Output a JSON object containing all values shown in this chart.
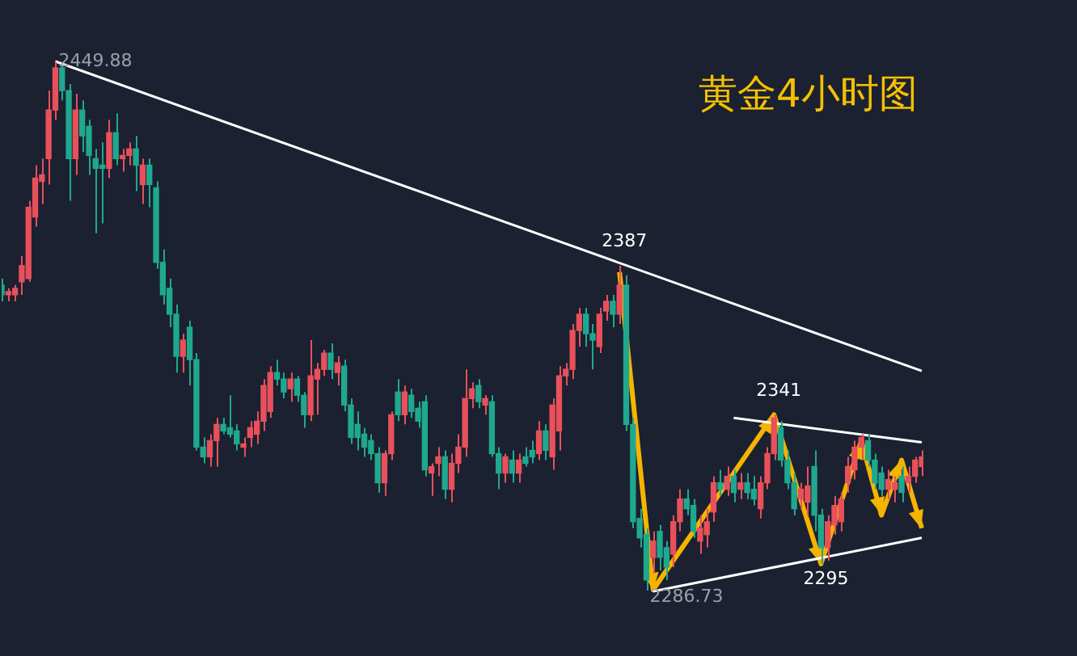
{
  "chart_data": {
    "type": "candlestick",
    "title": "黄金4小时图",
    "tick_labels": false,
    "colors": [
      "#1fa88f",
      "#e8505b",
      "#e8505b",
      "#e8505b",
      "#e8505b",
      "#e8505b",
      "#e8505b",
      "#e8505b",
      "#e8505b",
      "#1fa88f",
      "#1fa88f",
      "#e8505b",
      "#1fa88f",
      "#1fa88f",
      "#1fa88f",
      "#1fa88f",
      "#e8505b",
      "#1fa88f",
      "#e8505b",
      "#e8505b",
      "#1fa88f",
      "#e8505b",
      "#1fa88f",
      "#1fa88f",
      "#1fa88f",
      "#1fa88f",
      "#1fa88f",
      "#e8505b",
      "#1fa88f",
      "#1fa88f",
      "#1fa88f",
      "#e8505b",
      "#e8505b",
      "#1fa88f",
      "#1fa88f",
      "#1fa88f",
      "#e8505b",
      "#e8505b",
      "#e8505b",
      "#e8505b",
      "#e8505b",
      "#1fa88f",
      "#1fa88f",
      "#e8505b",
      "#1fa88f",
      "#1fa88f",
      "#e8505b",
      "#e8505b",
      "#e8505b",
      "#1fa88f",
      "#e8505b",
      "#1fa88f",
      "#1fa88f",
      "#1fa88f",
      "#1fa88f",
      "#1fa88f",
      "#1fa88f",
      "#e8505b",
      "#e8505b",
      "#1fa88f",
      "#e8505b",
      "#1fa88f",
      "#1fa88f",
      "#1fa88f",
      "#e8505b",
      "#e8505b",
      "#1fa88f",
      "#e8505b",
      "#e8505b",
      "#e8505b",
      "#e8505b",
      "#1fa88f",
      "#e8505b",
      "#1fa88f",
      "#1fa88f",
      "#e8505b",
      "#1fa88f",
      "#e8505b",
      "#1fa88f",
      "#1fa88f",
      "#e8505b",
      "#1fa88f",
      "#e8505b",
      "#e8505b",
      "#e8505b",
      "#e8505b",
      "#e8505b",
      "#1fa88f",
      "#1fa88f",
      "#e8505b",
      "#e8505b",
      "#1fa88f",
      "#e8505b",
      "#1fa88f",
      "#1fa88f",
      "#1fa88f",
      "#1fa88f",
      "#e8505b",
      "#1fa88f",
      "#1fa88f",
      "#e8505b",
      "#e8505b",
      "#1fa88f",
      "#1fa88f",
      "#e8505b",
      "#e8505b",
      "#e8505b",
      "#1fa88f",
      "#e8505b",
      "#1fa88f",
      "#e8505b",
      "#1fa88f",
      "#1fa88f",
      "#e8505b",
      "#e8505b",
      "#e8505b",
      "#1fa88f",
      "#1fa88f",
      "#1fa88f",
      "#e8505b",
      "#e8505b",
      "#1fa88f",
      "#1fa88f",
      "#e8505b",
      "#e8505b",
      "#e8505b",
      "#e8505b",
      "#e8505b",
      "#e8505b",
      "#1fa88f",
      "#1fa88f",
      "#1fa88f",
      "#e8505b",
      "#e8505b",
      "#1fa88f",
      "#e8505b",
      "#e8505b",
      "#e8505b"
    ],
    "categories": [
      null,
      null,
      null,
      null,
      null,
      null,
      null,
      null,
      null,
      null,
      null,
      null,
      null,
      null,
      null,
      null,
      null,
      null,
      null,
      null,
      null,
      null,
      null,
      null,
      null,
      null,
      null,
      null,
      null,
      null,
      null,
      null,
      null,
      null,
      null,
      null,
      null,
      null,
      null,
      null,
      null,
      null,
      null,
      null,
      null,
      null,
      null,
      null,
      null,
      null,
      null,
      null,
      null,
      null,
      null,
      null,
      null,
      null,
      null,
      null,
      null,
      null,
      null,
      null,
      null,
      null,
      null,
      null,
      null,
      null,
      null,
      null,
      null,
      null,
      null,
      null,
      null,
      null,
      null,
      null,
      null,
      null,
      null,
      null,
      null,
      null,
      null,
      null,
      null,
      null,
      null,
      null,
      null,
      null,
      null,
      null,
      null,
      null,
      null,
      null,
      null,
      null,
      null,
      null,
      null,
      null,
      null,
      null,
      null,
      null,
      null,
      null,
      null,
      null,
      null,
      null,
      null,
      null,
      null,
      null,
      null,
      null,
      null,
      null,
      null,
      null,
      null,
      null,
      null,
      null,
      null,
      null,
      null,
      null,
      null,
      null,
      null,
      null
    ],
    "ohlc": [
      [
        2381,
        2383,
        2376,
        2378
      ],
      [
        2378,
        2380,
        2376,
        2379
      ],
      [
        2378,
        2381,
        2376,
        2380
      ],
      [
        2382,
        2390,
        2378,
        2387
      ],
      [
        2383,
        2407,
        2382,
        2405
      ],
      [
        2402,
        2418,
        2399,
        2414
      ],
      [
        2413,
        2420,
        2406,
        2415
      ],
      [
        2420,
        2441,
        2412,
        2435
      ],
      [
        2435,
        2449.88,
        2432,
        2448
      ],
      [
        2448,
        2449,
        2438,
        2441
      ],
      [
        2441,
        2443,
        2407,
        2420
      ],
      [
        2420,
        2440,
        2415,
        2435
      ],
      [
        2435,
        2438,
        2422,
        2427
      ],
      [
        2430,
        2432,
        2415,
        2421
      ],
      [
        2420,
        2423,
        2397,
        2417
      ],
      [
        2418,
        2425,
        2400,
        2417
      ],
      [
        2417,
        2432,
        2414,
        2428
      ],
      [
        2428,
        2434,
        2418,
        2420
      ],
      [
        2420,
        2423,
        2416,
        2421
      ],
      [
        2421,
        2425,
        2418,
        2423
      ],
      [
        2423,
        2427,
        2410,
        2418
      ],
      [
        2412,
        2420,
        2406,
        2418
      ],
      [
        2418,
        2420,
        2405,
        2412
      ],
      [
        2411,
        2413,
        2386,
        2388
      ],
      [
        2388,
        2392,
        2375,
        2378
      ],
      [
        2380,
        2383,
        2368,
        2372
      ],
      [
        2372,
        2375,
        2354,
        2359
      ],
      [
        2359,
        2366,
        2354,
        2364
      ],
      [
        2368,
        2370,
        2350,
        2358
      ],
      [
        2358,
        2360,
        2330,
        2331
      ],
      [
        2331,
        2334,
        2326,
        2328
      ],
      [
        2328,
        2335,
        2325,
        2333
      ],
      [
        2333,
        2340,
        2325,
        2338
      ],
      [
        2338,
        2340,
        2335,
        2336
      ],
      [
        2337,
        2347,
        2334,
        2335
      ],
      [
        2336,
        2338,
        2330,
        2332
      ],
      [
        2331,
        2334,
        2328,
        2332
      ],
      [
        2334,
        2339,
        2331,
        2337
      ],
      [
        2335,
        2342,
        2332,
        2339
      ],
      [
        2339,
        2352,
        2336,
        2350
      ],
      [
        2342,
        2356,
        2340,
        2354
      ],
      [
        2354,
        2358,
        2350,
        2352
      ],
      [
        2352,
        2354,
        2346,
        2348
      ],
      [
        2349,
        2354,
        2345,
        2352
      ],
      [
        2352,
        2353,
        2345,
        2347
      ],
      [
        2347,
        2348,
        2337,
        2341
      ],
      [
        2341,
        2364,
        2339,
        2353
      ],
      [
        2352,
        2357,
        2341,
        2355
      ],
      [
        2355,
        2361,
        2353,
        2360
      ],
      [
        2360,
        2363,
        2352,
        2355
      ],
      [
        2354,
        2359,
        2350,
        2357
      ],
      [
        2356,
        2358,
        2342,
        2344
      ],
      [
        2344,
        2346,
        2332,
        2334
      ],
      [
        2338,
        2342,
        2330,
        2334
      ],
      [
        2335,
        2337,
        2328,
        2331
      ],
      [
        2333,
        2335,
        2327,
        2329
      ],
      [
        2329,
        2331,
        2317,
        2320
      ],
      [
        2320,
        2330,
        2316,
        2329
      ],
      [
        2329,
        2342,
        2327,
        2341
      ],
      [
        2348,
        2352,
        2339,
        2341
      ],
      [
        2341,
        2350,
        2338,
        2348
      ],
      [
        2347,
        2349,
        2340,
        2342
      ],
      [
        2343,
        2345,
        2337,
        2339
      ],
      [
        2345,
        2347,
        2322,
        2324
      ],
      [
        2323,
        2326,
        2316,
        2325
      ],
      [
        2326,
        2331,
        2322,
        2328
      ],
      [
        2328,
        2330,
        2315,
        2318
      ],
      [
        2318,
        2329,
        2314,
        2326
      ],
      [
        2326,
        2335,
        2323,
        2331
      ],
      [
        2331,
        2355,
        2328,
        2346
      ],
      [
        2346,
        2351,
        2343,
        2349
      ],
      [
        2350,
        2352,
        2343,
        2345
      ],
      [
        2344,
        2347,
        2341,
        2346
      ],
      [
        2345,
        2347,
        2328,
        2329
      ],
      [
        2329,
        2331,
        2318,
        2323
      ],
      [
        2323,
        2329,
        2320,
        2328
      ],
      [
        2327,
        2330,
        2320,
        2323
      ],
      [
        2323,
        2329,
        2320,
        2327
      ],
      [
        2328,
        2331,
        2325,
        2326
      ],
      [
        2330,
        2333,
        2326,
        2328
      ],
      [
        2329,
        2339,
        2327,
        2336
      ],
      [
        2336,
        2338,
        2327,
        2330
      ],
      [
        2328,
        2346,
        2324,
        2344
      ],
      [
        2336,
        2356,
        2330,
        2353
      ],
      [
        2353,
        2357,
        2350,
        2355
      ],
      [
        2355,
        2369,
        2352,
        2367
      ],
      [
        2367,
        2374,
        2362,
        2372
      ],
      [
        2372,
        2374,
        2362,
        2366
      ],
      [
        2366,
        2369,
        2355,
        2364
      ],
      [
        2362,
        2374,
        2360,
        2372
      ],
      [
        2373,
        2378,
        2370,
        2376
      ],
      [
        2376,
        2378,
        2368,
        2372
      ],
      [
        2372,
        2387,
        2369,
        2381
      ],
      [
        2381,
        2384,
        2336,
        2338
      ],
      [
        2338,
        2340,
        2306,
        2308
      ],
      [
        2309,
        2312,
        2300,
        2303
      ],
      [
        2304,
        2306,
        2286.73,
        2290
      ],
      [
        2297,
        2305,
        2292,
        2302
      ],
      [
        2305,
        2307,
        2293,
        2297
      ],
      [
        2300,
        2302,
        2290,
        2294
      ],
      [
        2298,
        2310,
        2294,
        2308
      ],
      [
        2308,
        2318,
        2305,
        2315
      ],
      [
        2315,
        2318,
        2310,
        2312
      ],
      [
        2313,
        2315,
        2303,
        2305
      ],
      [
        2302,
        2310,
        2298,
        2306
      ],
      [
        2304,
        2312,
        2300,
        2308
      ],
      [
        2311,
        2322,
        2308,
        2320
      ],
      [
        2320,
        2324,
        2316,
        2318
      ],
      [
        2318,
        2325,
        2316,
        2322
      ],
      [
        2322,
        2324,
        2314,
        2317
      ],
      [
        2318,
        2323,
        2315,
        2320
      ],
      [
        2320,
        2323,
        2315,
        2317
      ],
      [
        2318,
        2322,
        2313,
        2315
      ],
      [
        2312,
        2322,
        2309,
        2320
      ],
      [
        2320,
        2331,
        2318,
        2329
      ],
      [
        2329,
        2341,
        2327,
        2340
      ],
      [
        2337,
        2339,
        2325,
        2327
      ],
      [
        2327,
        2330,
        2318,
        2320
      ],
      [
        2320,
        2323,
        2310,
        2312
      ],
      [
        2315,
        2320,
        2312,
        2318
      ],
      [
        2314,
        2325,
        2310,
        2319
      ],
      [
        2325,
        2330,
        2305,
        2310
      ],
      [
        2310,
        2312,
        2295,
        2300
      ],
      [
        2300,
        2310,
        2296,
        2308
      ],
      [
        2307,
        2316,
        2304,
        2313
      ],
      [
        2308,
        2317,
        2305,
        2315
      ],
      [
        2320,
        2328,
        2317,
        2325
      ],
      [
        2324,
        2333,
        2321,
        2331
      ],
      [
        2331,
        2335,
        2327,
        2334
      ],
      [
        2333,
        2335,
        2325,
        2327
      ],
      [
        2327,
        2329,
        2318,
        2320
      ],
      [
        2323,
        2325,
        2316,
        2318
      ],
      [
        2318,
        2324,
        2315,
        2321
      ],
      [
        2318,
        2322,
        2314,
        2320
      ],
      [
        2322,
        2325,
        2314,
        2317
      ],
      [
        2320,
        2325,
        2317,
        2322
      ],
      [
        2322,
        2328,
        2320,
        2327
      ],
      [
        2325,
        2330,
        2322,
        2328
      ]
    ],
    "series": [
      {
        "type": "line",
        "color": "#ffffff",
        "values": [
          null,
          null,
          null,
          null,
          null,
          null,
          null,
          null,
          2450,
          null,
          null,
          null,
          null,
          null,
          null,
          null,
          null,
          null,
          null,
          null,
          null,
          null,
          null,
          null,
          null,
          null,
          null,
          null,
          null,
          null,
          null,
          null,
          null,
          null,
          null,
          null,
          null,
          null,
          null,
          null,
          null,
          null,
          null,
          null,
          null,
          null,
          null,
          null,
          null,
          null,
          null,
          null,
          null,
          null,
          null,
          null,
          null,
          null,
          null,
          null,
          null,
          null,
          null,
          null,
          null,
          null,
          null,
          null,
          null,
          null,
          null,
          null,
          null,
          null,
          null,
          null,
          null,
          null,
          null,
          null,
          null,
          null,
          null,
          null,
          null,
          null,
          null,
          null,
          null,
          null,
          null,
          null,
          null,
          null,
          null,
          null,
          null,
          null,
          null,
          null,
          null,
          null,
          null,
          null,
          null,
          null,
          null,
          null,
          null,
          null,
          null,
          null,
          null,
          null,
          null,
          null,
          null,
          null,
          null,
          null,
          null,
          null,
          null,
          null,
          null,
          null,
          null,
          null,
          null,
          null,
          null,
          null,
          null,
          null,
          null,
          null,
          null,
          2354.5
        ]
      },
      {
        "type": "line",
        "color": "#ffffff",
        "values": [
          null,
          null,
          null,
          null,
          null,
          null,
          null,
          null,
          null,
          null,
          null,
          null,
          null,
          null,
          null,
          null,
          null,
          null,
          null,
          null,
          null,
          null,
          null,
          null,
          null,
          null,
          null,
          null,
          null,
          null,
          null,
          null,
          null,
          null,
          null,
          null,
          null,
          null,
          null,
          null,
          null,
          null,
          null,
          null,
          null,
          null,
          null,
          null,
          null,
          null,
          null,
          null,
          null,
          null,
          null,
          null,
          null,
          null,
          null,
          null,
          null,
          null,
          null,
          null,
          null,
          null,
          null,
          null,
          null,
          null,
          null,
          null,
          null,
          null,
          null,
          null,
          null,
          null,
          null,
          null,
          null,
          null,
          null,
          null,
          null,
          null,
          null,
          null,
          null,
          null,
          null,
          null,
          null,
          null,
          null,
          null,
          null,
          null,
          null,
          null,
          null,
          null,
          null,
          null,
          null,
          null,
          null,
          null,
          null,
          2340,
          null,
          null,
          null,
          null,
          null,
          null,
          null,
          null,
          null,
          null,
          null,
          null,
          null,
          null,
          null,
          null,
          null,
          null,
          null,
          null,
          null,
          null,
          null,
          null,
          null,
          null,
          null,
          2332.5
        ]
      },
      {
        "type": "line",
        "color": "#ffffff",
        "values": [
          null,
          null,
          null,
          null,
          null,
          null,
          null,
          null,
          null,
          null,
          null,
          null,
          null,
          null,
          null,
          null,
          null,
          null,
          null,
          null,
          null,
          null,
          null,
          null,
          null,
          null,
          null,
          null,
          null,
          null,
          null,
          null,
          null,
          null,
          null,
          null,
          null,
          null,
          null,
          null,
          null,
          null,
          null,
          null,
          null,
          null,
          null,
          null,
          null,
          null,
          null,
          null,
          null,
          null,
          null,
          null,
          null,
          null,
          null,
          null,
          null,
          null,
          null,
          null,
          null,
          null,
          null,
          null,
          null,
          null,
          null,
          null,
          null,
          null,
          null,
          null,
          null,
          null,
          null,
          null,
          null,
          null,
          null,
          null,
          null,
          null,
          null,
          null,
          null,
          null,
          null,
          null,
          null,
          null,
          null,
          null,
          null,
          2286.5,
          null,
          null,
          null,
          null,
          null,
          null,
          null,
          null,
          null,
          null,
          null,
          null,
          null,
          null,
          null,
          null,
          null,
          null,
          null,
          null,
          null,
          null,
          null,
          null,
          null,
          null,
          null,
          null,
          null,
          null,
          null,
          null,
          null,
          null,
          null,
          null,
          null,
          null,
          null,
          2303
        ]
      },
      {
        "type": "line",
        "color": "#f5b400",
        "values": [
          null,
          null,
          null,
          null,
          null,
          null,
          null,
          null,
          null,
          null,
          null,
          null,
          null,
          null,
          null,
          null,
          null,
          null,
          null,
          null,
          null,
          null,
          null,
          null,
          null,
          null,
          null,
          null,
          null,
          null,
          null,
          null,
          null,
          null,
          null,
          null,
          null,
          null,
          null,
          null,
          null,
          null,
          null,
          null,
          null,
          null,
          null,
          null,
          null,
          null,
          null,
          null,
          null,
          null,
          null,
          null,
          null,
          null,
          null,
          null,
          null,
          null,
          null,
          null,
          null,
          null,
          null,
          null,
          null,
          null,
          null,
          null,
          null,
          null,
          null,
          null,
          null,
          null,
          null,
          null,
          null,
          null,
          null,
          null,
          null,
          null,
          null,
          null,
          null,
          null,
          null,
          null,
          2385,
          null,
          null,
          null,
          null,
          2287,
          null,
          null,
          null,
          null,
          null,
          null,
          null,
          null,
          null,
          null,
          null,
          null,
          null,
          null,
          null,
          null,
          null,
          2341,
          null,
          null,
          null,
          null,
          null,
          null,
          2295,
          null,
          null,
          null,
          null,
          null,
          2333,
          null,
          null,
          2310,
          null,
          null,
          2327,
          null,
          null,
          2306
        ]
      }
    ],
    "annotations": [
      "2449.88",
      {
        "text": "2387",
        "y": 2387
      },
      {
        "text": "2341",
        "y": 2341
      },
      {
        "text": "2295",
        "y": 2295
      },
      {
        "text": "2286.73",
        "y": 2286.73
      }
    ]
  }
}
